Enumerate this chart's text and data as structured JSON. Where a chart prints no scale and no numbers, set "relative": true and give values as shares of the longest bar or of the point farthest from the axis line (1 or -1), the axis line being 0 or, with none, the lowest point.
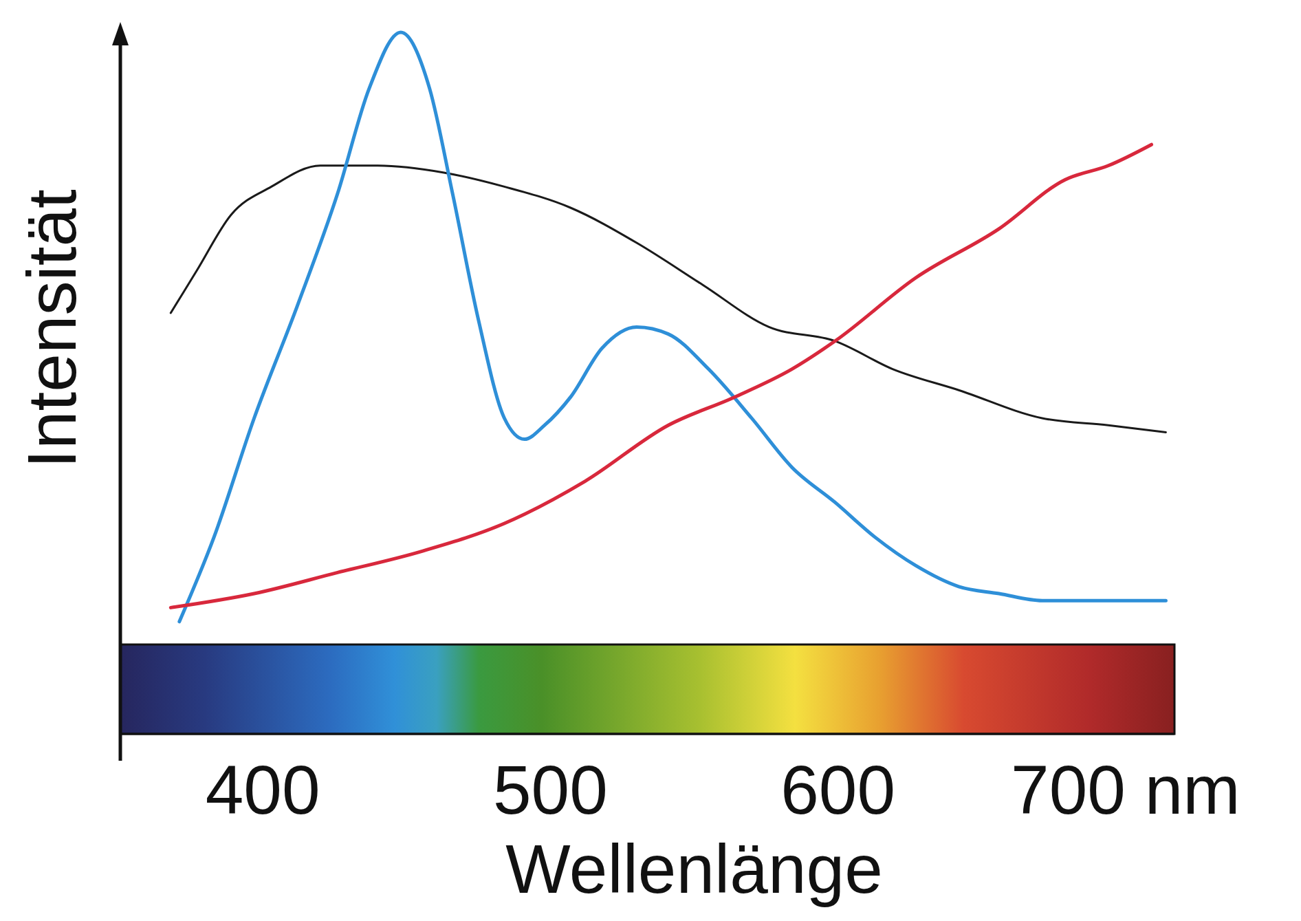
{
  "chart_data": {
    "type": "line",
    "xlabel": "Wellenlänge",
    "ylabel": "Intensität",
    "relative": true,
    "xlim": [
      350,
      717
    ],
    "xticks": [
      400,
      500,
      600,
      {
        "value": 700,
        "label": "700 nm"
      }
    ],
    "grid": false,
    "marker": "none",
    "line_style": "solid",
    "series": [
      {
        "color": "#1a1a1a",
        "x": [
          368,
          377,
          389,
          403,
          420,
          440,
          463,
          484,
          507,
          530,
          553,
          576,
          599,
          619,
          642,
          671,
          694,
          714
        ],
        "values": [
          0.6,
          0.66,
          0.74,
          0.78,
          0.81,
          0.81,
          0.8,
          0.78,
          0.75,
          0.7,
          0.64,
          0.58,
          0.56,
          0.52,
          0.49,
          0.45,
          0.44,
          0.43
        ]
      },
      {
        "color": "#2e8fd8",
        "x": [
          371,
          383,
          397,
          412,
          426,
          437,
          448,
          458,
          466,
          475,
          484,
          491,
          498,
          507,
          518,
          530,
          541,
          555,
          570,
          584,
          599,
          613,
          627,
          642,
          656,
          671,
          685,
          699,
          714
        ],
        "values": [
          0.16,
          0.28,
          0.45,
          0.61,
          0.77,
          0.92,
          1,
          0.92,
          0.77,
          0.59,
          0.45,
          0.42,
          0.44,
          0.48,
          0.55,
          0.58,
          0.57,
          0.52,
          0.45,
          0.38,
          0.33,
          0.28,
          0.24,
          0.21,
          0.2,
          0.19,
          0.19,
          0.19,
          0.19
        ]
      },
      {
        "color": "#d8283c",
        "x": [
          368,
          397,
          426,
          455,
          484,
          512,
          541,
          564,
          584,
          599,
          627,
          656,
          679,
          694,
          709
        ],
        "values": [
          0.18,
          0.2,
          0.23,
          0.26,
          0.3,
          0.36,
          0.44,
          0.48,
          0.52,
          0.56,
          0.65,
          0.72,
          0.79,
          0.81,
          0.84
        ]
      }
    ]
  }
}
